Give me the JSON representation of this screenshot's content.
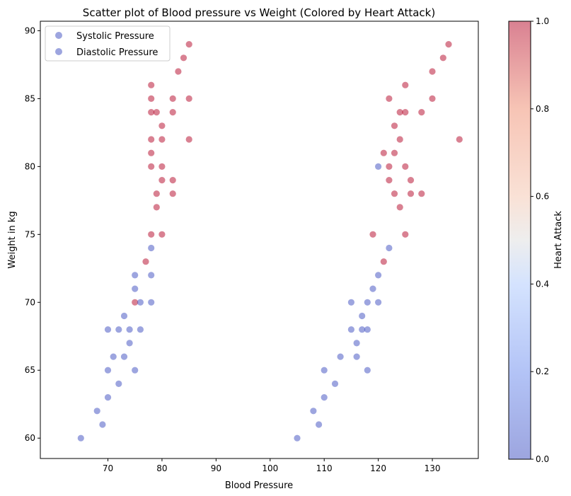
{
  "chart_data": {
    "type": "scatter",
    "title": "Scatter plot of Blood pressure vs Weight (Colored by Heart Attack)",
    "xlabel": "Blood Pressure",
    "ylabel": "Weight in kg",
    "xlim": [
      57.5,
      138.5
    ],
    "ylim": [
      58.5,
      90.7
    ],
    "xticks": [
      70,
      80,
      90,
      100,
      110,
      120,
      130
    ],
    "yticks": [
      60,
      65,
      70,
      75,
      80,
      85,
      90
    ],
    "grid": false,
    "legend": {
      "placement": "top-left",
      "entries": [
        "Systolic Pressure",
        "Diastolic Pressure"
      ]
    },
    "colorbar": {
      "label": "Heart Attack",
      "range": [
        0.0,
        1.0
      ],
      "ticks": [
        "0.0",
        "0.2",
        "0.4",
        "0.6",
        "0.8",
        "1.0"
      ],
      "colormap": "coolwarm",
      "colors": {
        "low": "#3b4cc0",
        "mid": "#dddddd",
        "high": "#b40426"
      }
    },
    "point_alpha": 0.5,
    "series": [
      {
        "name": "Systolic Pressure",
        "points": [
          [
            105,
            60,
            0
          ],
          [
            108,
            62,
            0
          ],
          [
            109,
            61,
            0
          ],
          [
            110,
            63,
            0
          ],
          [
            110,
            65,
            0
          ],
          [
            112,
            64,
            0
          ],
          [
            113,
            66,
            0
          ],
          [
            115,
            68,
            0
          ],
          [
            115,
            70,
            0
          ],
          [
            116,
            66,
            0
          ],
          [
            116,
            67,
            0
          ],
          [
            117,
            68,
            0
          ],
          [
            117,
            69,
            0
          ],
          [
            118,
            68,
            0
          ],
          [
            118,
            65,
            0
          ],
          [
            118,
            70,
            0
          ],
          [
            119,
            71,
            0
          ],
          [
            120,
            72,
            0
          ],
          [
            120,
            70,
            0
          ],
          [
            122,
            74,
            0
          ],
          [
            120,
            80,
            0
          ],
          [
            119,
            75,
            1
          ],
          [
            121,
            73,
            1
          ],
          [
            122,
            79,
            1
          ],
          [
            122,
            80,
            1
          ],
          [
            122,
            85,
            1
          ],
          [
            123,
            78,
            1
          ],
          [
            123,
            81,
            1
          ],
          [
            123,
            83,
            1
          ],
          [
            124,
            82,
            1
          ],
          [
            124,
            84,
            1
          ],
          [
            124,
            77,
            1
          ],
          [
            125,
            75,
            1
          ],
          [
            125,
            80,
            1
          ],
          [
            125,
            84,
            1
          ],
          [
            125,
            86,
            1
          ],
          [
            126,
            79,
            1
          ],
          [
            126,
            78,
            1
          ],
          [
            128,
            78,
            1
          ],
          [
            128,
            84,
            1
          ],
          [
            130,
            85,
            1
          ],
          [
            130,
            87,
            1
          ],
          [
            132,
            88,
            1
          ],
          [
            133,
            89,
            1
          ],
          [
            135,
            82,
            1
          ],
          [
            121,
            81,
            1
          ]
        ]
      },
      {
        "name": "Diastolic Pressure",
        "points": [
          [
            65,
            60,
            0
          ],
          [
            68,
            62,
            0
          ],
          [
            69,
            61,
            0
          ],
          [
            70,
            63,
            0
          ],
          [
            70,
            65,
            0
          ],
          [
            70,
            68,
            0
          ],
          [
            71,
            66,
            0
          ],
          [
            72,
            64,
            0
          ],
          [
            72,
            68,
            0
          ],
          [
            73,
            66,
            0
          ],
          [
            73,
            69,
            0
          ],
          [
            74,
            67,
            0
          ],
          [
            74,
            68,
            0
          ],
          [
            75,
            65,
            0
          ],
          [
            75,
            70,
            1
          ],
          [
            75,
            71,
            0
          ],
          [
            75,
            72,
            0
          ],
          [
            76,
            68,
            0
          ],
          [
            76,
            70,
            0
          ],
          [
            77,
            73,
            1
          ],
          [
            78,
            70,
            0
          ],
          [
            78,
            72,
            0
          ],
          [
            78,
            74,
            0
          ],
          [
            78,
            75,
            1
          ],
          [
            78,
            80,
            1
          ],
          [
            78,
            81,
            1
          ],
          [
            78,
            82,
            1
          ],
          [
            78,
            84,
            1
          ],
          [
            78,
            85,
            1
          ],
          [
            78,
            86,
            1
          ],
          [
            79,
            77,
            1
          ],
          [
            79,
            78,
            1
          ],
          [
            79,
            84,
            1
          ],
          [
            80,
            75,
            1
          ],
          [
            80,
            79,
            1
          ],
          [
            80,
            80,
            1
          ],
          [
            80,
            82,
            1
          ],
          [
            80,
            83,
            1
          ],
          [
            82,
            78,
            1
          ],
          [
            82,
            79,
            1
          ],
          [
            82,
            84,
            1
          ],
          [
            82,
            85,
            1
          ],
          [
            83,
            87,
            1
          ],
          [
            84,
            88,
            1
          ],
          [
            85,
            82,
            1
          ],
          [
            85,
            85,
            1
          ],
          [
            85,
            89,
            1
          ]
        ]
      }
    ]
  }
}
